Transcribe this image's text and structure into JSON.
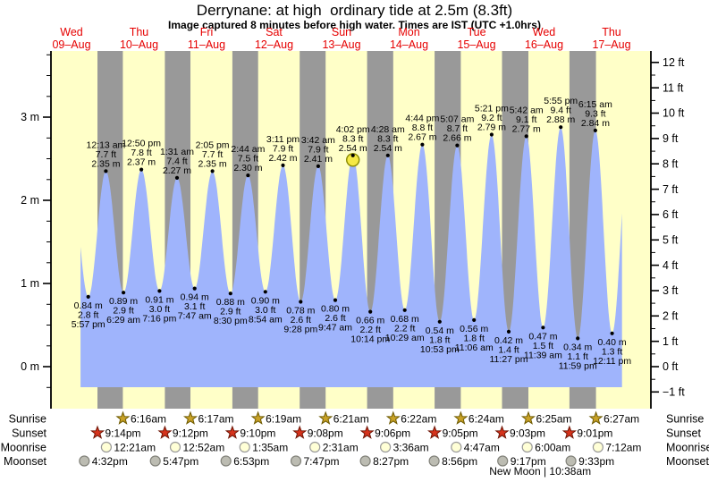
{
  "title": "Derrynane: at high  ordinary tide at 2.5m (8.3ft)",
  "subtitle": "Image captured 8 minutes before high water. Times are IST (UTC +1.0hrs)",
  "colors": {
    "plot_bg": "#ffffc8",
    "night_band": "#999999",
    "tide_fill": "#9fb4fc",
    "day_label": "#e60000",
    "annotation": "#000000",
    "axis": "#000000",
    "current_marker_fill": "#f5e945",
    "current_marker_stroke": "#8a8a00",
    "sunrise_star_fill": "#c9a227",
    "sunrise_star_stroke": "#6e5a00",
    "sunset_star_fill": "#d6331c",
    "sunset_star_stroke": "#6e1505",
    "moonrise_fill": "#ffffd6",
    "moonrise_stroke": "#9a9a9a",
    "moonset_fill": "#bcbcb2",
    "moonset_stroke": "#82827a"
  },
  "chart_data": {
    "type": "area",
    "title": "Derrynane: at high  ordinary tide at 2.5m (8.3ft)",
    "ylabel_left": "m",
    "ylabel_right": "ft",
    "ylim_m": [
      -0.5,
      3.8
    ],
    "grid": false,
    "days": [
      {
        "name": "Wed",
        "date": "09–Aug"
      },
      {
        "name": "Thu",
        "date": "10–Aug"
      },
      {
        "name": "Fri",
        "date": "11–Aug"
      },
      {
        "name": "Sat",
        "date": "12–Aug"
      },
      {
        "name": "Sun",
        "date": "13–Aug"
      },
      {
        "name": "Mon",
        "date": "14–Aug"
      },
      {
        "name": "Tue",
        "date": "15–Aug"
      },
      {
        "name": "Wed",
        "date": "16–Aug"
      },
      {
        "name": "Thu",
        "date": "17–Aug"
      }
    ],
    "y_axis_left": {
      "labels": [
        {
          "v": 0,
          "text": "0 m"
        },
        {
          "v": 1,
          "text": "1 m"
        },
        {
          "v": 2,
          "text": "2 m"
        },
        {
          "v": 3,
          "text": "3 m"
        }
      ],
      "minor_step": 0.25,
      "minor_min": -0.25,
      "minor_max": 3.75
    },
    "y_axis_right": {
      "labels": [
        {
          "v": -1,
          "text": "−1 ft"
        },
        {
          "v": 0,
          "text": "0 ft"
        },
        {
          "v": 1,
          "text": "1 ft"
        },
        {
          "v": 2,
          "text": "2 ft"
        },
        {
          "v": 3,
          "text": "3 ft"
        },
        {
          "v": 4,
          "text": "4 ft"
        },
        {
          "v": 5,
          "text": "5 ft"
        },
        {
          "v": 6,
          "text": "6 ft"
        },
        {
          "v": 7,
          "text": "7 ft"
        },
        {
          "v": 8,
          "text": "8 ft"
        },
        {
          "v": 9,
          "text": "9 ft"
        },
        {
          "v": 10,
          "text": "10 ft"
        },
        {
          "v": 11,
          "text": "11 ft"
        },
        {
          "v": 12,
          "text": "12 ft"
        }
      ],
      "minor_step": 0.5,
      "minor_min": -0.5,
      "minor_max": 12
    },
    "night_bands": [
      [
        21.23,
        30.27
      ],
      [
        45.2,
        54.28
      ],
      [
        69.17,
        78.32
      ],
      [
        93.13,
        102.35
      ],
      [
        117.1,
        126.37
      ],
      [
        141.08,
        150.4
      ],
      [
        165.05,
        174.42
      ],
      [
        189.02,
        198.45
      ]
    ],
    "phantom_before": {
      "t": 11.75,
      "m": 2.3
    },
    "phantom_after": {
      "t": 210.4,
      "m": 2.8
    },
    "window": [
      15.2,
      207.7
    ],
    "tides": [
      {
        "type": "low",
        "time": "5:57 pm",
        "t": 17.95,
        "m": 0.84,
        "m_label": "0.84 m",
        "ft_label": "2.8 ft"
      },
      {
        "type": "high",
        "time": "12:13 am",
        "t": 24.22,
        "m": 2.35,
        "m_label": "2.35 m",
        "ft_label": "7.7 ft"
      },
      {
        "type": "low",
        "time": "6:29 am",
        "t": 30.48,
        "m": 0.89,
        "m_label": "0.89 m",
        "ft_label": "2.9 ft"
      },
      {
        "type": "high",
        "time": "12:50 pm",
        "t": 36.83,
        "m": 2.37,
        "m_label": "2.37 m",
        "ft_label": "7.8 ft"
      },
      {
        "type": "low",
        "time": "7:16 pm",
        "t": 43.27,
        "m": 0.91,
        "m_label": "0.91 m",
        "ft_label": "3.0 ft"
      },
      {
        "type": "high",
        "time": "1:31 am",
        "t": 49.52,
        "m": 2.27,
        "m_label": "2.27 m",
        "ft_label": "7.4 ft"
      },
      {
        "type": "low",
        "time": "7:47 am",
        "t": 55.78,
        "m": 0.94,
        "m_label": "0.94 m",
        "ft_label": "3.1 ft"
      },
      {
        "type": "high",
        "time": "2:05 pm",
        "t": 62.08,
        "m": 2.35,
        "m_label": "2.35 m",
        "ft_label": "7.7 ft"
      },
      {
        "type": "low",
        "time": "8:30 pm",
        "t": 68.5,
        "m": 0.88,
        "m_label": "0.88 m",
        "ft_label": "2.9 ft"
      },
      {
        "type": "high",
        "time": "2:44 am",
        "t": 74.73,
        "m": 2.3,
        "m_label": "2.30 m",
        "ft_label": "7.5 ft"
      },
      {
        "type": "low",
        "time": "8:54 am",
        "t": 80.9,
        "m": 0.9,
        "m_label": "0.90 m",
        "ft_label": "3.0 ft"
      },
      {
        "type": "high",
        "time": "3:11 pm",
        "t": 87.18,
        "m": 2.42,
        "m_label": "2.42 m",
        "ft_label": "7.9 ft"
      },
      {
        "type": "low",
        "time": "9:28 pm",
        "t": 93.47,
        "m": 0.78,
        "m_label": "0.78 m",
        "ft_label": "2.6 ft"
      },
      {
        "type": "high",
        "time": "3:42 am",
        "t": 99.7,
        "m": 2.41,
        "m_label": "2.41 m",
        "ft_label": "7.9 ft"
      },
      {
        "type": "low",
        "time": "9:47 am",
        "t": 105.78,
        "m": 0.8,
        "m_label": "0.80 m",
        "ft_label": "2.6 ft"
      },
      {
        "type": "high",
        "time": "4:02 pm",
        "t": 112.03,
        "m": 2.54,
        "m_label": "2.54 m",
        "ft_label": "8.3 ft",
        "current": true
      },
      {
        "type": "low",
        "time": "10:14 pm",
        "t": 118.23,
        "m": 0.66,
        "m_label": "0.66 m",
        "ft_label": "2.2 ft"
      },
      {
        "type": "high",
        "time": "4:28 am",
        "t": 124.47,
        "m": 2.54,
        "m_label": "2.54 m",
        "ft_label": "8.3 ft"
      },
      {
        "type": "low",
        "time": "10:29 am",
        "t": 130.48,
        "m": 0.68,
        "m_label": "0.68 m",
        "ft_label": "2.2 ft"
      },
      {
        "type": "high",
        "time": "4:44 pm",
        "t": 136.73,
        "m": 2.67,
        "m_label": "2.67 m",
        "ft_label": "8.8 ft"
      },
      {
        "type": "low",
        "time": "10:53 pm",
        "t": 142.88,
        "m": 0.54,
        "m_label": "0.54 m",
        "ft_label": "1.8 ft"
      },
      {
        "type": "high",
        "time": "5:07 am",
        "t": 149.12,
        "m": 2.66,
        "m_label": "2.66 m",
        "ft_label": "8.7 ft"
      },
      {
        "type": "low",
        "time": "11:06 am",
        "t": 155.1,
        "m": 0.56,
        "m_label": "0.56 m",
        "ft_label": "1.8 ft"
      },
      {
        "type": "high",
        "time": "5:21 pm",
        "t": 161.35,
        "m": 2.79,
        "m_label": "2.79 m",
        "ft_label": "9.2 ft"
      },
      {
        "type": "low",
        "time": "11:27 pm",
        "t": 167.45,
        "m": 0.42,
        "m_label": "0.42 m",
        "ft_label": "1.4 ft"
      },
      {
        "type": "high",
        "time": "5:42 am",
        "t": 173.7,
        "m": 2.77,
        "m_label": "2.77 m",
        "ft_label": "9.1 ft"
      },
      {
        "type": "low",
        "time": "11:39 am",
        "t": 179.65,
        "m": 0.47,
        "m_label": "0.47 m",
        "ft_label": "1.5 ft"
      },
      {
        "type": "high",
        "time": "5:55 pm",
        "t": 185.92,
        "m": 2.88,
        "m_label": "2.88 m",
        "ft_label": "9.4 ft"
      },
      {
        "type": "low",
        "time": "11:59 pm",
        "t": 191.98,
        "m": 0.34,
        "m_label": "0.34 m",
        "ft_label": "1.1 ft"
      },
      {
        "type": "high",
        "time": "6:15 am",
        "t": 198.25,
        "m": 2.84,
        "m_label": "2.84 m",
        "ft_label": "9.3 ft"
      },
      {
        "type": "low",
        "time": "12:11 pm",
        "t": 204.18,
        "m": 0.4,
        "m_label": "0.40 m",
        "ft_label": "1.3 ft"
      }
    ]
  },
  "astro": {
    "rows": [
      {
        "name": "sunrise",
        "label": "Sunrise",
        "icon": "sunrise-star-icon",
        "events": [
          {
            "t": 30.27,
            "time": "6:16am"
          },
          {
            "t": 54.28,
            "time": "6:17am"
          },
          {
            "t": 78.32,
            "time": "6:19am"
          },
          {
            "t": 102.35,
            "time": "6:21am"
          },
          {
            "t": 126.37,
            "time": "6:22am"
          },
          {
            "t": 150.4,
            "time": "6:24am"
          },
          {
            "t": 174.42,
            "time": "6:25am"
          },
          {
            "t": 198.45,
            "time": "6:27am"
          }
        ]
      },
      {
        "name": "sunset",
        "label": "Sunset",
        "icon": "sunset-star-icon",
        "events": [
          {
            "t": 21.23,
            "time": "9:14pm"
          },
          {
            "t": 45.2,
            "time": "9:12pm"
          },
          {
            "t": 69.17,
            "time": "9:10pm"
          },
          {
            "t": 93.13,
            "time": "9:08pm"
          },
          {
            "t": 117.1,
            "time": "9:06pm"
          },
          {
            "t": 141.08,
            "time": "9:05pm"
          },
          {
            "t": 165.05,
            "time": "9:03pm"
          },
          {
            "t": 189.02,
            "time": "9:01pm"
          }
        ]
      },
      {
        "name": "moonrise",
        "label": "Moonrise",
        "icon": "moonrise-icon",
        "events": [
          {
            "t": 24.35,
            "time": "12:21am"
          },
          {
            "t": 48.87,
            "time": "12:52am"
          },
          {
            "t": 73.58,
            "time": "1:35am"
          },
          {
            "t": 98.52,
            "time": "2:31am"
          },
          {
            "t": 123.6,
            "time": "3:36am"
          },
          {
            "t": 148.78,
            "time": "4:47am"
          },
          {
            "t": 174.0,
            "time": "6:00am"
          },
          {
            "t": 199.2,
            "time": "7:12am"
          }
        ]
      },
      {
        "name": "moonset",
        "label": "Moonset",
        "icon": "moonset-icon",
        "events": [
          {
            "t": 16.53,
            "time": "4:32pm"
          },
          {
            "t": 41.78,
            "time": "5:47pm"
          },
          {
            "t": 66.88,
            "time": "6:53pm"
          },
          {
            "t": 91.78,
            "time": "7:47pm"
          },
          {
            "t": 116.45,
            "time": "8:27pm"
          },
          {
            "t": 140.93,
            "time": "8:56pm"
          },
          {
            "t": 165.28,
            "time": "9:17pm"
          },
          {
            "t": 189.55,
            "time": "9:33pm"
          }
        ]
      }
    ],
    "new_moon": {
      "text": "New Moon | 10:38am",
      "t": 178.63
    }
  }
}
